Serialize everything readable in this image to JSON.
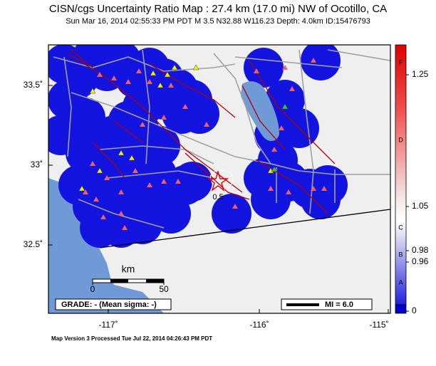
{
  "header": {
    "title": "CISN/cgs Uncertainty Ratio Map : 27.4 km (17.0 mi) NW of Ocotillo, CA",
    "subtitle": "Sun Mar 16, 2014 02:55:33 PM PDT   M 3.5   N32.88 W116.23   Depth: 4.0km   ID:15476793"
  },
  "map": {
    "lat_ticks": [
      {
        "value": 33.5,
        "label": "33.5˚"
      },
      {
        "value": 33,
        "label": "33˚"
      },
      {
        "value": 32.5,
        "label": "32.5˚"
      }
    ],
    "lon_ticks": [
      {
        "value": -117,
        "label": "-117˚"
      },
      {
        "value": -116,
        "label": "-116˚"
      },
      {
        "value": -115,
        "label": "-115˚"
      }
    ],
    "contour_label": "0.5",
    "scale": {
      "unit": "km",
      "ticks": [
        0,
        50
      ]
    },
    "grade": "GRADE: - (Mean sigma: -)",
    "legend": "MI = 6.0"
  },
  "colorbar": {
    "letters": [
      "F",
      "D",
      "C",
      "B",
      "A"
    ],
    "ticks": [
      1.25,
      1.05,
      0.98,
      0.96,
      0
    ]
  },
  "footer": "Map Version 3 Processed Tue Jul 22, 2014 04:26:43 PM PDT"
}
